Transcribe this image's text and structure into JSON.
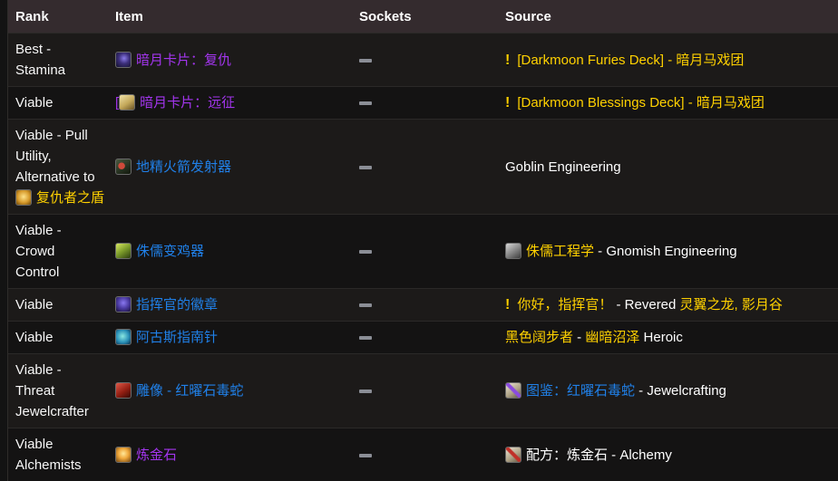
{
  "header": {
    "rank": "Rank",
    "item": "Item",
    "sockets": "Sockets",
    "source": "Source"
  },
  "colors": {
    "header_bg": "#342b2e",
    "row_odd_bg": "#1c1a19",
    "row_even_bg": "#141313",
    "row_border": "#2b2928",
    "quality_epic": "#a335ee",
    "quality_rare": "#2080e8",
    "link_gold": "#ffd100",
    "text_white": "#ffffff",
    "sockets_dash": "#8b8e96"
  },
  "rows": [
    {
      "rank": "Best -\nStamina",
      "item_name": "暗月卡片：复仇",
      "item_quality": "epic",
      "item_icon": "darkmoon-card-vengeance-icon",
      "sockets": "—",
      "src_excl": "!",
      "src_link": "[Darkmoon Furies Deck] - 暗月马戏团"
    },
    {
      "rank": "Viable",
      "item_prefix": "[",
      "item_name": "暗月卡片：远征",
      "item_quality": "epic",
      "item_icon": "darkmoon-card-expedition-icon",
      "sockets": "—",
      "src_excl": "!",
      "src_link": "[Darkmoon Blessings Deck] - 暗月马戏团"
    },
    {
      "rank": "Viable - Pull\nUtility,\nAlternative to",
      "rank_link": "复仇者之盾",
      "item_name": "地精火箭发射器",
      "item_quality": "rare",
      "item_icon": "rocket-launcher-icon",
      "sockets": "—",
      "src_text": "Goblin Engineering"
    },
    {
      "rank": "Viable -\nCrowd\nControl",
      "item_name": "侏儒变鸡器",
      "item_quality": "rare",
      "item_icon": "chicken-device-icon",
      "sockets": "—",
      "src_link": "侏儒工程学",
      "src_text": " - Gnomish Engineering"
    },
    {
      "rank": "Viable",
      "item_name": "指挥官的徽章",
      "item_quality": "rare",
      "item_icon": "commander-badge-icon",
      "sockets": "—",
      "src_excl": "!",
      "src_link": "你好，指挥官！",
      "src_text": " - Revered ",
      "src_link2": "灵翼之龙, 影月谷"
    },
    {
      "rank": "Viable",
      "item_name": "阿古斯指南针",
      "item_quality": "rare",
      "item_icon": "compass-icon",
      "sockets": "—",
      "src_link": "黑色阔步者",
      "src_text": " - ",
      "src_link2": "幽暗沼泽",
      "src_text2": " Heroic"
    },
    {
      "rank": "Viable -\nThreat\nJewelcrafter",
      "item_name": "雕像 - 红曜石毒蛇",
      "item_quality": "rare",
      "item_icon": "serpent-statue-icon",
      "sockets": "—",
      "src_link": "图鉴：红曜石毒蛇",
      "src_text": " - Jewelcrafting"
    },
    {
      "rank": "Viable\nAlchemists",
      "item_name": "炼金石",
      "item_quality": "epic",
      "item_icon": "alchemist-stone-icon",
      "sockets": "—",
      "src_link": "配方：炼金石",
      "src_text": " - Alchemy"
    }
  ]
}
